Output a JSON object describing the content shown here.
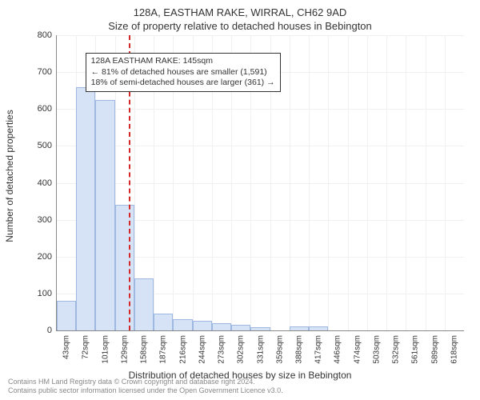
{
  "title_line1": "128A, EASTHAM RAKE, WIRRAL, CH62 9AD",
  "title_line2": "Size of property relative to detached houses in Bebington",
  "chart": {
    "type": "histogram",
    "y_axis_title": "Number of detached properties",
    "x_axis_title": "Distribution of detached houses by size in Bebington",
    "ylim": [
      0,
      800
    ],
    "ytick_step": 100,
    "yticks": [
      0,
      100,
      200,
      300,
      400,
      500,
      600,
      700,
      800
    ],
    "x_labels": [
      "43sqm",
      "72sqm",
      "101sqm",
      "129sqm",
      "158sqm",
      "187sqm",
      "216sqm",
      "244sqm",
      "273sqm",
      "302sqm",
      "331sqm",
      "359sqm",
      "388sqm",
      "417sqm",
      "446sqm",
      "474sqm",
      "503sqm",
      "532sqm",
      "561sqm",
      "589sqm",
      "618sqm"
    ],
    "values": [
      80,
      660,
      625,
      340,
      140,
      45,
      30,
      25,
      20,
      15,
      8,
      0,
      10,
      10,
      0,
      0,
      0,
      0,
      0,
      0,
      0
    ],
    "bar_fill": "#d6e2f5",
    "bar_stroke": "#9fb8e0",
    "grid_color": "#f0f0f0",
    "background_color": "#ffffff",
    "axis_color": "#888888",
    "marker_value": 145,
    "marker_x_range": [
      43,
      618
    ],
    "marker_color": "#d62728",
    "bar_gap_ratio": 0.0,
    "title_fontsize": 13,
    "axis_title_fontsize": 12,
    "tick_fontsize": 11
  },
  "info_box": {
    "line1": "128A EASTHAM RAKE: 145sqm",
    "line2": "← 81% of detached houses are smaller (1,591)",
    "line3": "18% of semi-detached houses are larger (361) →",
    "left_pct": 7,
    "top_pct": 6
  },
  "footer": {
    "line1": "Contains HM Land Registry data © Crown copyright and database right 2024.",
    "line2": "Contains public sector information licensed under the Open Government Licence v3.0."
  }
}
